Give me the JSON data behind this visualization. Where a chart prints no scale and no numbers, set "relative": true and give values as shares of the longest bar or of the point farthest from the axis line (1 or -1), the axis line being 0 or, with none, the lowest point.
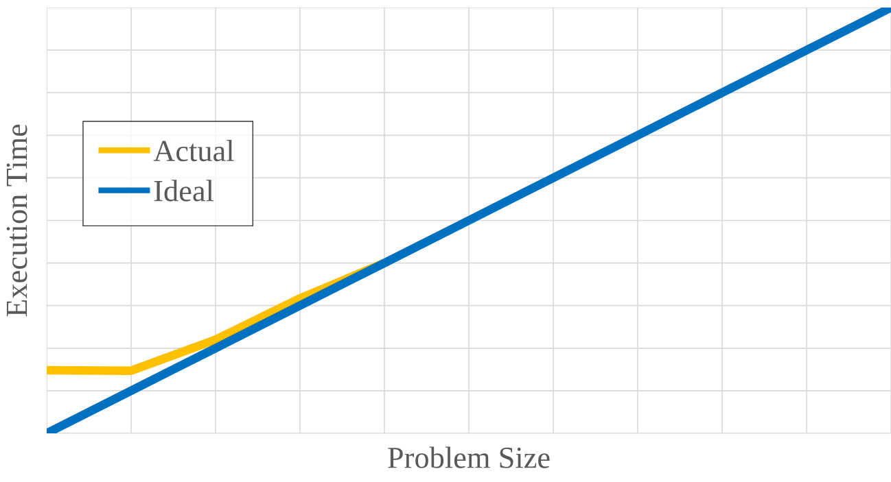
{
  "chart_data": {
    "type": "line",
    "xlabel": "Problem Size",
    "ylabel": "Execution Time",
    "relative": true,
    "categories": [
      null,
      null,
      null,
      null,
      null,
      null,
      null,
      null,
      null,
      null,
      null
    ],
    "series": [
      {
        "name": "Actual",
        "color": "#ffc000",
        "values": [
          0.148,
          0.147,
          0.22,
          0.317,
          0.4,
          null,
          null,
          null,
          null,
          null,
          null
        ]
      },
      {
        "name": "Ideal",
        "color": "#0070c0",
        "values": [
          0,
          0.1,
          0.2,
          0.3,
          0.4,
          0.5,
          0.6,
          0.7,
          0.8,
          0.9,
          1.0
        ]
      }
    ],
    "grid": true,
    "legend": "left",
    "tick_labels": false,
    "line_style": "solid"
  }
}
